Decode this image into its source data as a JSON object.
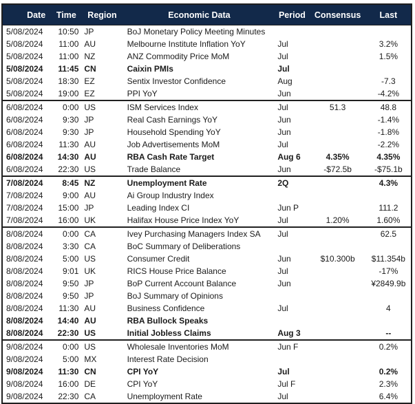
{
  "theme": {
    "header_bg": "#12294a",
    "header_text": "#ffffff",
    "row_text": "#1a1a1a",
    "border_color": "#1f1f1f"
  },
  "table": {
    "columns": [
      "Date",
      "Time",
      "Region",
      "Economic Data",
      "Period",
      "Consensus",
      "Last"
    ],
    "rows": [
      {
        "date": "5/08/2024",
        "time": "10:50",
        "region": "JP",
        "event": "BoJ Monetary Policy Meeting Minutes",
        "period": "",
        "consensus": "",
        "last": "",
        "bold": false,
        "group_start": false
      },
      {
        "date": "5/08/2024",
        "time": "11:00",
        "region": "AU",
        "event": "Melbourne Institute Inflation YoY",
        "period": "Jul",
        "consensus": "",
        "last": "3.2%",
        "bold": false,
        "group_start": false
      },
      {
        "date": "5/08/2024",
        "time": "11:00",
        "region": "NZ",
        "event": "ANZ Commodity Price MoM",
        "period": "Jul",
        "consensus": "",
        "last": "1.5%",
        "bold": false,
        "group_start": false
      },
      {
        "date": "5/08/2024",
        "time": "11:45",
        "region": "CN",
        "event": "Caixin PMIs",
        "period": "Jul",
        "consensus": "",
        "last": "",
        "bold": true,
        "group_start": false
      },
      {
        "date": "5/08/2024",
        "time": "18:30",
        "region": "EZ",
        "event": "Sentix Investor Confidence",
        "period": "Aug",
        "consensus": "",
        "last": "-7.3",
        "bold": false,
        "group_start": false
      },
      {
        "date": "5/08/2024",
        "time": "19:00",
        "region": "EZ",
        "event": "PPI YoY",
        "period": "Jun",
        "consensus": "",
        "last": "-4.2%",
        "bold": false,
        "group_start": false
      },
      {
        "date": "6/08/2024",
        "time": "0:00",
        "region": "US",
        "event": "ISM Services Index",
        "period": "Jul",
        "consensus": "51.3",
        "last": "48.8",
        "bold": false,
        "group_start": true
      },
      {
        "date": "6/08/2024",
        "time": "9:30",
        "region": "JP",
        "event": "Real Cash Earnings YoY",
        "period": "Jun",
        "consensus": "",
        "last": "-1.4%",
        "bold": false,
        "group_start": false
      },
      {
        "date": "6/08/2024",
        "time": "9:30",
        "region": "JP",
        "event": "Household Spending YoY",
        "period": "Jun",
        "consensus": "",
        "last": "-1.8%",
        "bold": false,
        "group_start": false
      },
      {
        "date": "6/08/2024",
        "time": "11:30",
        "region": "AU",
        "event": "Job Advertisements MoM",
        "period": "Jul",
        "consensus": "",
        "last": "-2.2%",
        "bold": false,
        "group_start": false
      },
      {
        "date": "6/08/2024",
        "time": "14:30",
        "region": "AU",
        "event": "RBA Cash Rate Target",
        "period": "Aug 6",
        "consensus": "4.35%",
        "last": "4.35%",
        "bold": true,
        "group_start": false
      },
      {
        "date": "6/08/2024",
        "time": "22:30",
        "region": "US",
        "event": "Trade Balance",
        "period": "Jun",
        "consensus": "-$72.5b",
        "last": "-$75.1b",
        "bold": false,
        "group_start": false
      },
      {
        "date": "7/08/2024",
        "time": "8:45",
        "region": "NZ",
        "event": "Unemployment Rate",
        "period": "2Q",
        "consensus": "",
        "last": "4.3%",
        "bold": true,
        "group_start": true
      },
      {
        "date": "7/08/2024",
        "time": "9:00",
        "region": "AU",
        "event": "Ai Group Industry Index",
        "period": "",
        "consensus": "",
        "last": "",
        "bold": false,
        "group_start": false
      },
      {
        "date": "7/08/2024",
        "time": "15:00",
        "region": "JP",
        "event": "Leading Index CI",
        "period": "Jun P",
        "consensus": "",
        "last": "111.2",
        "bold": false,
        "group_start": false
      },
      {
        "date": "7/08/2024",
        "time": "16:00",
        "region": "UK",
        "event": "Halifax House Price Index YoY",
        "period": "Jul",
        "consensus": "1.20%",
        "last": "1.60%",
        "bold": false,
        "group_start": false
      },
      {
        "date": "8/08/2024",
        "time": "0:00",
        "region": "CA",
        "event": "Ivey Purchasing Managers Index SA",
        "period": "Jul",
        "consensus": "",
        "last": "62.5",
        "bold": false,
        "group_start": true
      },
      {
        "date": "8/08/2024",
        "time": "3:30",
        "region": "CA",
        "event": "BoC Summary of Deliberations",
        "period": "",
        "consensus": "",
        "last": "",
        "bold": false,
        "group_start": false
      },
      {
        "date": "8/08/2024",
        "time": "5:00",
        "region": "US",
        "event": "Consumer Credit",
        "period": "Jun",
        "consensus": "$10.300b",
        "last": "$11.354b",
        "bold": false,
        "group_start": false
      },
      {
        "date": "8/08/2024",
        "time": "9:01",
        "region": "UK",
        "event": "RICS House Price Balance",
        "period": "Jul",
        "consensus": "",
        "last": "-17%",
        "bold": false,
        "group_start": false
      },
      {
        "date": "8/08/2024",
        "time": "9:50",
        "region": "JP",
        "event": "BoP Current Account Balance",
        "period": "Jun",
        "consensus": "",
        "last": "¥2849.9b",
        "bold": false,
        "group_start": false
      },
      {
        "date": "8/08/2024",
        "time": "9:50",
        "region": "JP",
        "event": "BoJ Summary of Opinions",
        "period": "",
        "consensus": "",
        "last": "",
        "bold": false,
        "group_start": false
      },
      {
        "date": "8/08/2024",
        "time": "11:30",
        "region": "AU",
        "event": "Business Confidence",
        "period": "Jul",
        "consensus": "",
        "last": "4",
        "bold": false,
        "group_start": false
      },
      {
        "date": "8/08/2024",
        "time": "14:40",
        "region": "AU",
        "event": "RBA Bullock Speaks",
        "period": "",
        "consensus": "",
        "last": "",
        "bold": true,
        "group_start": false
      },
      {
        "date": "8/08/2024",
        "time": "22:30",
        "region": "US",
        "event": "Initial Jobless Claims",
        "period": "Aug 3",
        "consensus": "",
        "last": "--",
        "bold": true,
        "group_start": false
      },
      {
        "date": "9/08/2024",
        "time": "0:00",
        "region": "US",
        "event": "Wholesale Inventories MoM",
        "period": "Jun F",
        "consensus": "",
        "last": "0.2%",
        "bold": false,
        "group_start": true
      },
      {
        "date": "9/08/2024",
        "time": "5:00",
        "region": "MX",
        "event": "Interest Rate Decision",
        "period": "",
        "consensus": "",
        "last": "",
        "bold": false,
        "group_start": false
      },
      {
        "date": "9/08/2024",
        "time": "11:30",
        "region": "CN",
        "event": "CPI YoY",
        "period": "Jul",
        "consensus": "",
        "last": "0.2%",
        "bold": true,
        "group_start": false
      },
      {
        "date": "9/08/2024",
        "time": "16:00",
        "region": "DE",
        "event": "CPI YoY",
        "period": "Jul F",
        "consensus": "",
        "last": "2.3%",
        "bold": false,
        "group_start": false
      },
      {
        "date": "9/08/2024",
        "time": "22:30",
        "region": "CA",
        "event": "Unemployment Rate",
        "period": "Jul",
        "consensus": "",
        "last": "6.4%",
        "bold": false,
        "group_start": false
      }
    ]
  }
}
